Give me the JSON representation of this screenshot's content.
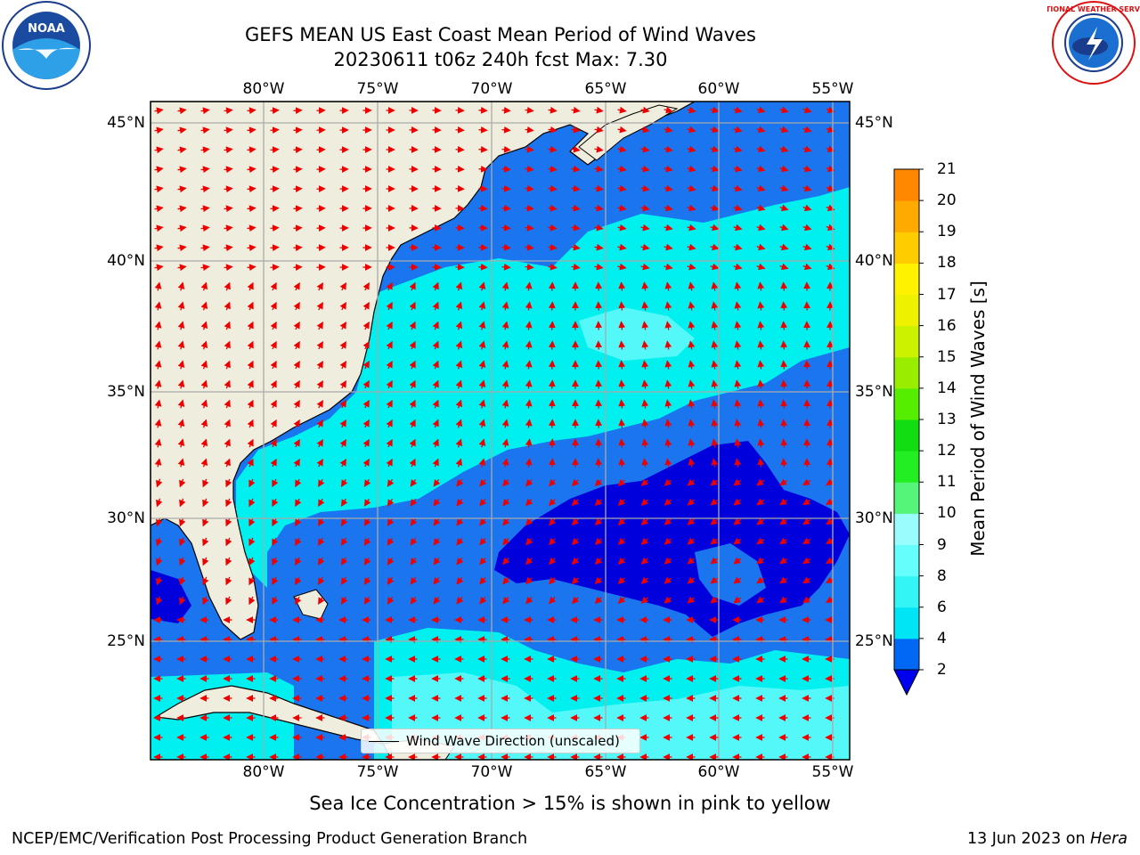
{
  "title_line1": "GEFS MEAN US East Coast Mean Period of Wind Waves",
  "title_line2": "20230611 t06z 240h fcst   Max: 7.30",
  "subtitle": "Sea Ice Concentration > 15% is shown in pink to yellow",
  "footer_left": "NCEP/EMC/Verification Post Processing Product Generation Branch",
  "footer_right_date": "13 Jun 2023 on ",
  "footer_right_machine": "Hera",
  "legend_label": "Wind Wave Direction (unscaled)",
  "lon_labels": [
    "80°W",
    "75°W",
    "70°W",
    "65°W",
    "60°W",
    "55°W"
  ],
  "lat_labels": [
    "45°N",
    "40°N",
    "35°N",
    "30°N",
    "25°N"
  ],
  "colorbar": {
    "label": "Mean Period of Wind Waves [s]",
    "ticks": [
      "2",
      "4",
      "6",
      "8",
      "9",
      "10",
      "11",
      "12",
      "13",
      "14",
      "15",
      "16",
      "17",
      "18",
      "19",
      "20",
      "21"
    ],
    "colors": [
      "#0068f5",
      "#00e5f5",
      "#33f5f5",
      "#66fdfd",
      "#99fdfd",
      "#55f57a",
      "#22ee22",
      "#11dd11",
      "#55ee00",
      "#99ee00",
      "#ccf200",
      "#eef200",
      "#fff200",
      "#ffcc00",
      "#ffaa00",
      "#ff8800",
      "#ff5500",
      "#ff2200",
      "#ff0000"
    ],
    "under_color": "#0000ee"
  },
  "logos": {
    "noaa": "NOAA",
    "nws_ring": "NATIONAL WEATHER SERVICE"
  },
  "colors": {
    "land": "#efeddd",
    "period_2_4": "#1a75ee",
    "period_4_6": "#00f0f0",
    "period_6_8": "#55f8f8",
    "period_lt_2": "#0000dd",
    "arrow": "#ee0000",
    "grid": "#aaaaaa"
  }
}
